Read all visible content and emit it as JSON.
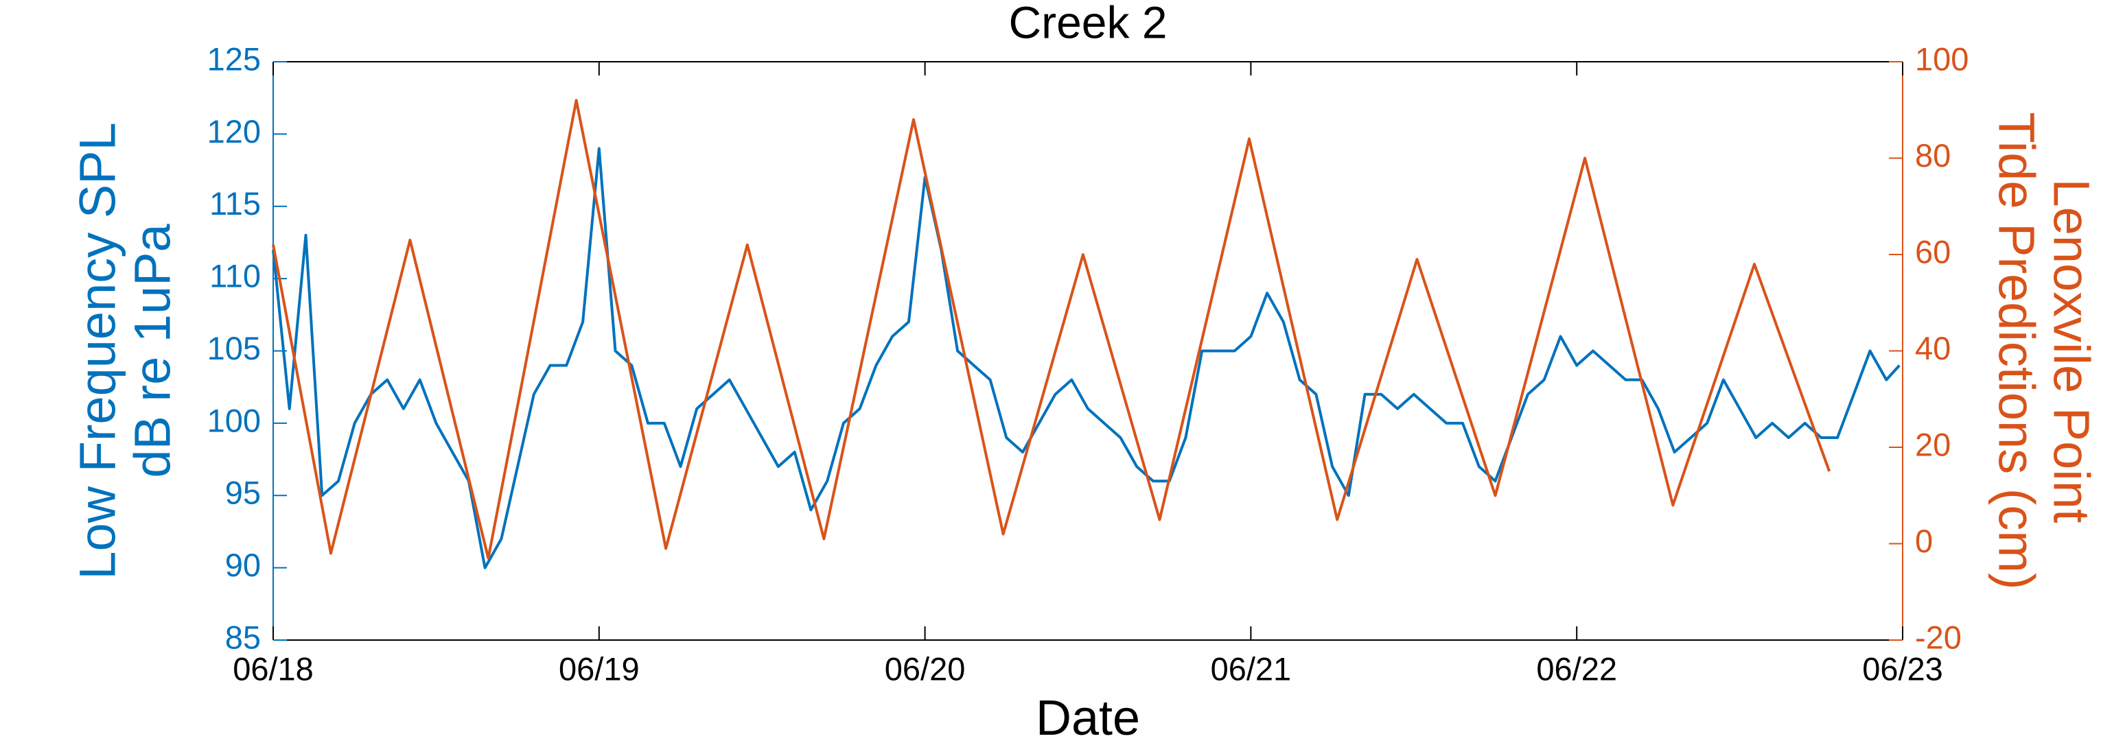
{
  "chart_data": {
    "type": "line",
    "title": "Creek 2",
    "x_label": "Date",
    "y_label": [
      "Low Frequency SPL",
      "dB re 1uPa"
    ],
    "y2_label": [
      "Lenoxvile Point",
      "Tide Predictions (cm)"
    ],
    "xlim": [
      0,
      5
    ],
    "xticks": [
      {
        "value": 0,
        "label": "06/18"
      },
      {
        "value": 1,
        "label": "06/19"
      },
      {
        "value": 2,
        "label": "06/20"
      },
      {
        "value": 3,
        "label": "06/21"
      },
      {
        "value": 4,
        "label": "06/22"
      },
      {
        "value": 5,
        "label": "06/23"
      }
    ],
    "ylim": [
      85,
      125
    ],
    "yticks": [
      85,
      90,
      95,
      100,
      105,
      110,
      115,
      120,
      125
    ],
    "y2lim": [
      -20,
      100
    ],
    "y2ticks": [
      -20,
      0,
      20,
      40,
      60,
      80,
      100
    ],
    "y_color": "#0072bd",
    "y2_color": "#d95319",
    "series": [
      {
        "color": "#0072bd",
        "axis": "y",
        "x": [
          0,
          0.05,
          0.1,
          0.15,
          0.2,
          0.25,
          0.3,
          0.35,
          0.4,
          0.45,
          0.5,
          0.55,
          0.6,
          0.65,
          0.7,
          0.75,
          0.8,
          0.85,
          0.9,
          0.95,
          1,
          1.05,
          1.1,
          1.15,
          1.2,
          1.25,
          1.3,
          1.35,
          1.4,
          1.45,
          1.5,
          1.55,
          1.6,
          1.65,
          1.7,
          1.75,
          1.8,
          1.85,
          1.9,
          1.95,
          2,
          2.05,
          2.1,
          2.15,
          2.2,
          2.25,
          2.3,
          2.35,
          2.4,
          2.45,
          2.5,
          2.55,
          2.6,
          2.65,
          2.7,
          2.75,
          2.8,
          2.85,
          2.9,
          2.95,
          3,
          3.05,
          3.1,
          3.15,
          3.2,
          3.25,
          3.3,
          3.35,
          3.4,
          3.45,
          3.5,
          3.55,
          3.6,
          3.65,
          3.7,
          3.75,
          3.8,
          3.85,
          3.9,
          3.95,
          4,
          4.05,
          4.1,
          4.15,
          4.2,
          4.25,
          4.3,
          4.35,
          4.4,
          4.45,
          4.5,
          4.55,
          4.6,
          4.65,
          4.7,
          4.75,
          4.8,
          4.85,
          4.9,
          4.95,
          4.99
        ],
        "values": [
          112,
          101,
          113,
          95,
          96,
          100,
          102,
          103,
          101,
          103,
          100,
          98,
          96,
          90,
          92,
          97,
          102,
          104,
          104,
          107,
          119,
          105,
          104,
          100,
          100,
          97,
          101,
          102,
          103,
          101,
          99,
          97,
          98,
          94,
          96,
          100,
          101,
          104,
          106,
          107,
          117,
          112,
          105,
          104,
          103,
          99,
          98,
          100,
          102,
          103,
          101,
          100,
          99,
          97,
          96,
          96,
          99,
          105,
          105,
          105,
          106,
          109,
          107,
          103,
          102,
          97,
          95,
          102,
          102,
          101,
          102,
          101,
          100,
          100,
          97,
          96,
          99,
          102,
          103,
          106,
          104,
          105,
          104,
          103,
          103,
          101,
          98,
          99,
          100,
          103,
          101,
          99,
          100,
          99,
          100,
          99,
          99,
          102,
          105,
          103,
          104
        ]
      },
      {
        "color": "#d95319",
        "axis": "y2",
        "x": [
          0,
          0.177,
          0.42,
          0.66,
          0.93,
          1.205,
          1.455,
          1.69,
          1.965,
          2.24,
          2.485,
          2.72,
          2.995,
          3.265,
          3.51,
          3.75,
          4.025,
          4.295,
          4.545,
          4.775
        ],
        "values": [
          62,
          -2,
          63,
          -3,
          92,
          -1,
          62,
          1,
          88,
          2,
          60,
          5,
          84,
          5,
          59,
          10,
          80,
          8,
          58,
          15
        ]
      }
    ]
  }
}
